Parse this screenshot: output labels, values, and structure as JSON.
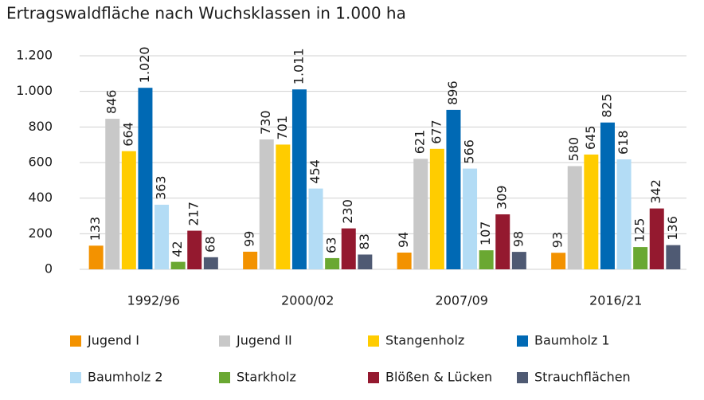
{
  "chart_data": {
    "type": "bar",
    "title": "Ertragswaldfläche nach Wuchsklassen in 1.000 ha",
    "categories": [
      "1992/96",
      "2000/02",
      "2007/09",
      "2016/21"
    ],
    "series": [
      {
        "name": "Jugend I",
        "color": "#f39200",
        "values": [
          133,
          99,
          94,
          93
        ]
      },
      {
        "name": "Jugend II",
        "color": "#c8c8c8",
        "values": [
          846,
          730,
          621,
          580
        ]
      },
      {
        "name": "Stangenholz",
        "color": "#ffcc00",
        "values": [
          664,
          701,
          677,
          645
        ]
      },
      {
        "name": "Baumholz 1",
        "color": "#0069b4",
        "values": [
          1020,
          1011,
          896,
          825
        ],
        "value_labels": [
          "1.020",
          "1.011",
          "896",
          "825"
        ]
      },
      {
        "name": "Baumholz 2",
        "color": "#b3dcf5",
        "values": [
          363,
          454,
          566,
          618
        ]
      },
      {
        "name": "Starkholz",
        "color": "#6aa832",
        "values": [
          42,
          63,
          107,
          125
        ]
      },
      {
        "name": "Blößen & Lücken",
        "color": "#94192f",
        "values": [
          217,
          230,
          309,
          342
        ]
      },
      {
        "name": "Strauchflächen",
        "color": "#4f5a73",
        "values": [
          68,
          83,
          98,
          136
        ]
      }
    ],
    "ylim": [
      0,
      1200
    ],
    "yticks": [
      0,
      200,
      400,
      600,
      800,
      {
        "value": 1000,
        "label": "1.000"
      },
      {
        "value": 1200,
        "label": "1.200"
      }
    ],
    "grid": true
  }
}
